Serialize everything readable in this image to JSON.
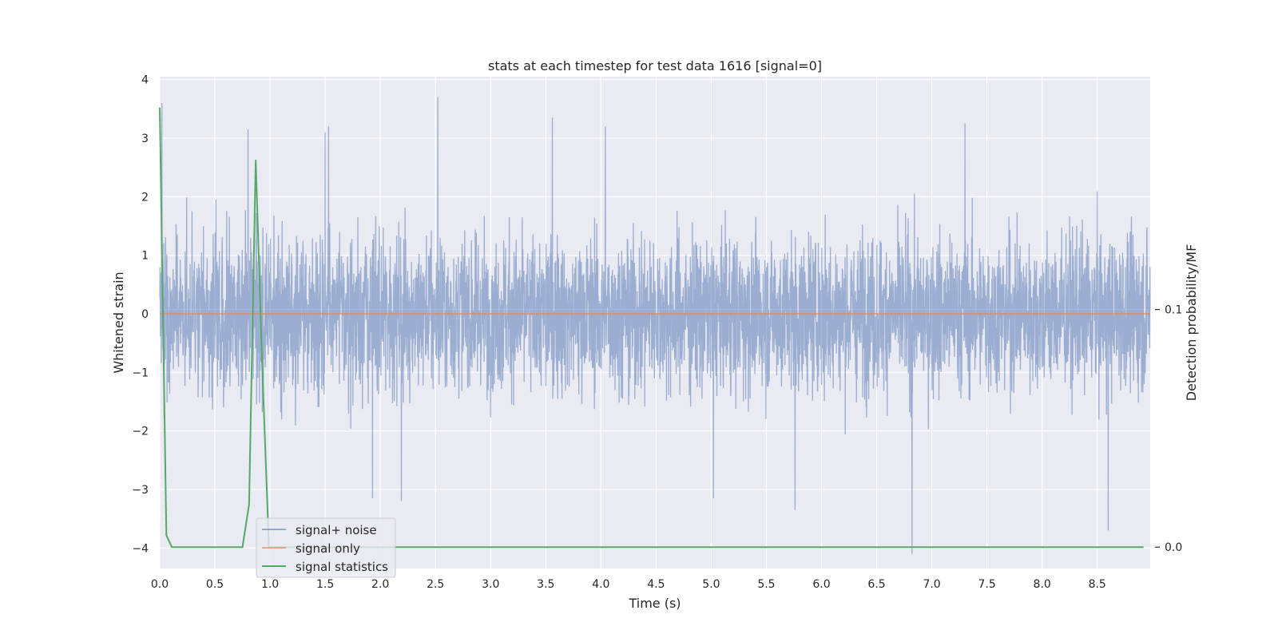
{
  "chart_data": {
    "type": "line",
    "title": "stats at each timestep for test data 1616 [signal=0]",
    "xlabel": "Time (s)",
    "ylabel": "Whitened strain",
    "y2label": "Detection probability/MF",
    "xlim": [
      0.0,
      8.98
    ],
    "ylim": [
      -4.35,
      4.05
    ],
    "y2lim": [
      -0.009,
      0.198
    ],
    "x_ticks": [
      "0.0",
      "0.5",
      "1.0",
      "1.5",
      "2.0",
      "2.5",
      "3.0",
      "3.5",
      "4.0",
      "4.5",
      "5.0",
      "5.5",
      "6.0",
      "6.5",
      "7.0",
      "7.5",
      "8.0",
      "8.5"
    ],
    "y_ticks": [
      "4",
      "3",
      "2",
      "1",
      "0",
      "−1",
      "−2",
      "−3",
      "−4"
    ],
    "y2_ticks": [
      "0.1",
      "0.0"
    ],
    "grid": true,
    "legend_position": "lower-left",
    "series": [
      {
        "name": "signal+ noise",
        "axis": "left",
        "color": "#4c72b0",
        "description_values": {
          "duration_s": 8.98,
          "mean": 0.0,
          "typical_abs_max": 2.3,
          "peaks": [
            {
              "x": 0.02,
              "y": 3.6
            },
            {
              "x": 0.8,
              "y": 3.15
            },
            {
              "x": 1.5,
              "y": 3.1
            },
            {
              "x": 1.53,
              "y": 3.2
            },
            {
              "x": 2.52,
              "y": 3.7
            },
            {
              "x": 3.56,
              "y": 3.35
            },
            {
              "x": 4.04,
              "y": 3.2
            },
            {
              "x": 7.3,
              "y": 3.25
            },
            {
              "x": 1.93,
              "y": -3.15
            },
            {
              "x": 2.19,
              "y": -3.2
            },
            {
              "x": 5.02,
              "y": -3.15
            },
            {
              "x": 5.76,
              "y": -3.35
            },
            {
              "x": 6.82,
              "y": -4.1
            },
            {
              "x": 8.6,
              "y": -3.7
            }
          ]
        }
      },
      {
        "name": "signal only",
        "axis": "left",
        "color": "#dd8452",
        "x": [
          0.0,
          8.98
        ],
        "y": [
          0.0,
          0.0
        ]
      },
      {
        "name": "signal statistics",
        "axis": "right",
        "color": "#55a868",
        "x": [
          0.0,
          0.06,
          0.11,
          0.75,
          0.81,
          0.87,
          0.93,
          0.99,
          1.05,
          8.92
        ],
        "y": [
          0.185,
          0.005,
          0.0,
          0.0,
          0.018,
          0.163,
          0.075,
          0.0,
          0.0,
          0.0
        ]
      }
    ]
  }
}
